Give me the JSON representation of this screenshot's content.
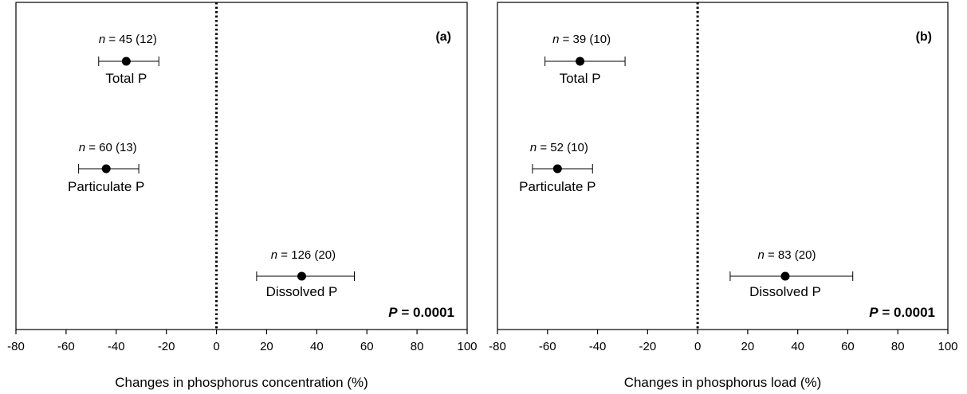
{
  "chart_data": [
    {
      "type": "scatter",
      "panel_letter": "(a)",
      "xlabel": "Changes in phosphorus concentration (%)",
      "ylabel": "",
      "xlim": [
        -80,
        100
      ],
      "xticks": [
        "-80",
        "-60",
        "-40",
        "-20",
        "0",
        "20",
        "40",
        "60",
        "80",
        "100"
      ],
      "reference_line_x": 0,
      "grid": false,
      "annotation": "= 0.0001",
      "annotation_prefix": "P",
      "points": [
        {
          "category": "Total P",
          "n_prefix": "n",
          "n_text": " = 45 (12)",
          "mean": -36,
          "ci_low": -47,
          "ci_high": -23
        },
        {
          "category": "Particulate P",
          "n_prefix": "n",
          "n_text": " = 60 (13)",
          "mean": -44,
          "ci_low": -55,
          "ci_high": -31
        },
        {
          "category": "Dissolved P",
          "n_prefix": "n",
          "n_text": " = 126 (20)",
          "mean": 34,
          "ci_low": 16,
          "ci_high": 55
        }
      ]
    },
    {
      "type": "scatter",
      "panel_letter": "(b)",
      "xlabel": "Changes in phosphorus load (%)",
      "ylabel": "",
      "xlim": [
        -80,
        100
      ],
      "xticks": [
        "-80",
        "-60",
        "-40",
        "-20",
        "0",
        "20",
        "40",
        "60",
        "80",
        "100"
      ],
      "reference_line_x": 0,
      "grid": false,
      "annotation": "= 0.0001",
      "annotation_prefix": "P",
      "points": [
        {
          "category": "Total P",
          "n_prefix": "n",
          "n_text": " = 39 (10)",
          "mean": -47,
          "ci_low": -61,
          "ci_high": -29
        },
        {
          "category": "Particulate P",
          "n_prefix": "n",
          "n_text": " = 52 (10)",
          "mean": -56,
          "ci_low": -66,
          "ci_high": -42
        },
        {
          "category": "Dissolved P",
          "n_prefix": "n",
          "n_text": " = 83 (20)",
          "mean": 35,
          "ci_low": 13,
          "ci_high": 62
        }
      ]
    }
  ]
}
